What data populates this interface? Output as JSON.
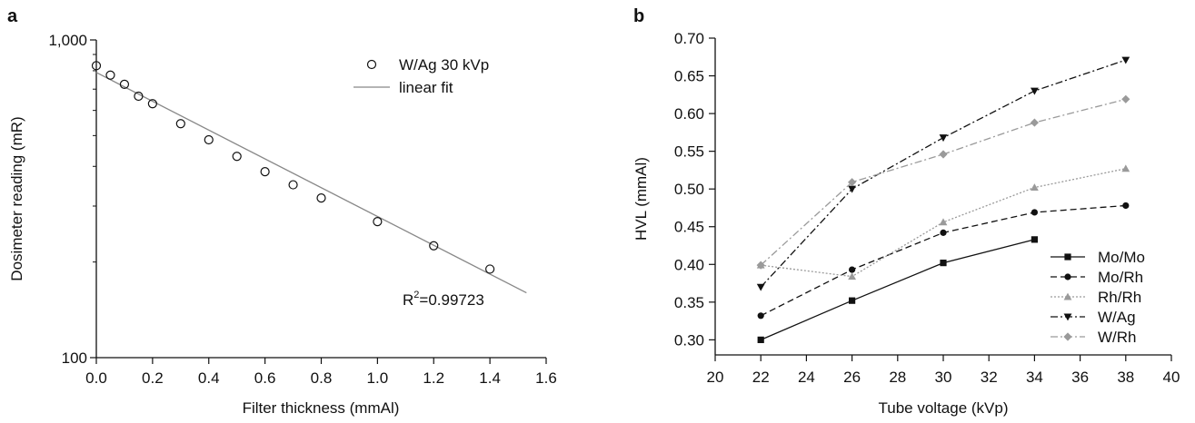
{
  "chart_data": [
    {
      "panel_label": "a",
      "type": "scatter",
      "xlabel": "Filter thickness (mmAl)",
      "ylabel": "Dosimeter reading (mR)",
      "xlim": [
        0,
        1.6
      ],
      "ylim": [
        100,
        1000
      ],
      "yscale": "log",
      "xticks": [
        0.0,
        0.2,
        0.4,
        0.6,
        0.8,
        1.0,
        1.2,
        1.4,
        1.6
      ],
      "xtick_labels": [
        "0.0",
        "0.2",
        "0.4",
        "0.6",
        "0.8",
        "1.0",
        "1.2",
        "1.4",
        "1.6"
      ],
      "yticks": [
        100,
        1000
      ],
      "ytick_labels": [
        "100",
        "1,000"
      ],
      "grid": false,
      "legend_position": "top-right",
      "series": [
        {
          "name": "W/Ag 30 kVp",
          "marker": "open-circle",
          "color": "#111111",
          "x": [
            0.0,
            0.05,
            0.1,
            0.15,
            0.2,
            0.3,
            0.4,
            0.5,
            0.6,
            0.7,
            0.8,
            1.0,
            1.2,
            1.4
          ],
          "y": [
            830,
            775,
            725,
            665,
            630,
            545,
            485,
            430,
            385,
            350,
            318,
            268,
            225,
            190
          ]
        },
        {
          "name": "linear fit",
          "style": "line",
          "color": "#888888",
          "x": [
            0.0,
            1.53
          ],
          "y": [
            790,
            160
          ]
        }
      ],
      "annotations": [
        {
          "text_base": "R",
          "text_sup": "2",
          "text_rest": "=0.99723"
        }
      ]
    },
    {
      "panel_label": "b",
      "type": "line",
      "xlabel": "Tube voltage (kVp)",
      "ylabel": "HVL (mmAl)",
      "xlim": [
        20,
        40
      ],
      "ylim": [
        0.28,
        0.7
      ],
      "xticks": [
        20,
        22,
        24,
        26,
        28,
        30,
        32,
        34,
        36,
        38,
        40
      ],
      "xtick_labels": [
        "20",
        "22",
        "24",
        "26",
        "28",
        "30",
        "32",
        "34",
        "36",
        "38",
        "40"
      ],
      "yticks": [
        0.3,
        0.35,
        0.4,
        0.45,
        0.5,
        0.55,
        0.6,
        0.65,
        0.7
      ],
      "ytick_labels": [
        "0.30",
        "0.35",
        "0.40",
        "0.45",
        "0.50",
        "0.55",
        "0.60",
        "0.65",
        "0.70"
      ],
      "grid": false,
      "legend_position": "bottom-right",
      "series": [
        {
          "name": "Mo/Mo",
          "color": "#111111",
          "dash": "",
          "marker": "square",
          "x": [
            22,
            26,
            30,
            34
          ],
          "y": [
            0.3,
            0.352,
            0.402,
            0.433
          ]
        },
        {
          "name": "Mo/Rh",
          "color": "#111111",
          "dash": "7,4",
          "marker": "circle",
          "x": [
            22,
            26,
            30,
            34,
            38
          ],
          "y": [
            0.332,
            0.393,
            0.442,
            0.469,
            0.478
          ]
        },
        {
          "name": "Rh/Rh",
          "color": "#9a9a9a",
          "dash": "2,2",
          "marker": "triangle-up",
          "x": [
            22,
            26,
            30,
            34,
            38
          ],
          "y": [
            0.399,
            0.384,
            0.456,
            0.502,
            0.527
          ]
        },
        {
          "name": "W/Ag",
          "color": "#111111",
          "dash": "8,3,2,3",
          "marker": "triangle-down",
          "x": [
            22,
            26,
            30,
            34,
            38
          ],
          "y": [
            0.37,
            0.5,
            0.568,
            0.63,
            0.671
          ]
        },
        {
          "name": "W/Rh",
          "color": "#9a9a9a",
          "dash": "8,3,2,3",
          "marker": "diamond",
          "x": [
            22,
            26,
            30,
            34,
            38
          ],
          "y": [
            0.399,
            0.509,
            0.546,
            0.588,
            0.619
          ]
        }
      ]
    }
  ]
}
